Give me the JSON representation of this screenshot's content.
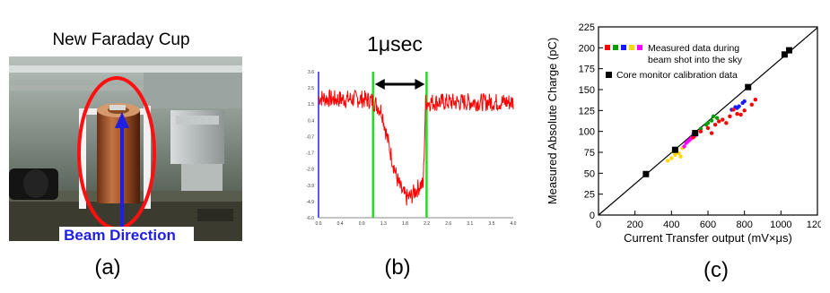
{
  "panel_a": {
    "title": "New Faraday Cup",
    "beam_label": "Beam Direction",
    "caption": "(a)",
    "colors": {
      "ellipse": "#ff1010",
      "arrow": "#1f1fe0",
      "label_bg": "#ffffff"
    }
  },
  "panel_b": {
    "span_label": "1μsec",
    "caption": "(b)"
  },
  "panel_c": {
    "caption": "(c)"
  },
  "chart_data": [
    {
      "type": "line",
      "title": "",
      "xlabel": "",
      "ylabel": "",
      "xlim": [
        0.0,
        4.0
      ],
      "ylim": [
        -6.0,
        3.6
      ],
      "x_ticks": [
        "0.0",
        "0.4",
        "0.9",
        "1.3",
        "1.8",
        "2.2",
        "2.6",
        "3.1",
        "3.5",
        "4.0"
      ],
      "y_ticks": [
        "3.6",
        "2.5",
        "1.5",
        "0.4",
        "-0.7",
        "-1.7",
        "-2.8",
        "-3.9",
        "-4.9",
        "-6.0"
      ],
      "markers": {
        "green_lines_x": [
          1.12,
          2.22
        ]
      },
      "series": [
        {
          "color": "#ff0000",
          "x": [
            0.0,
            0.3,
            0.6,
            0.9,
            1.1,
            1.2,
            1.3,
            1.4,
            1.5,
            1.6,
            1.7,
            1.8,
            1.9,
            2.0,
            2.1,
            2.15,
            2.2,
            2.5,
            3.0,
            3.5,
            4.0
          ],
          "y": [
            1.9,
            1.8,
            1.8,
            1.8,
            1.7,
            1.4,
            1.0,
            -0.6,
            -2.0,
            -3.3,
            -4.2,
            -4.7,
            -4.6,
            -4.2,
            -3.8,
            -3.9,
            1.6,
            1.6,
            1.6,
            1.6,
            1.6
          ]
        }
      ]
    },
    {
      "type": "scatter",
      "title": "",
      "xlabel": "Current Transfer output (mV×μs)",
      "ylabel": "Measured Absolute Charge (pC)",
      "xlim": [
        0,
        1200
      ],
      "ylim": [
        0,
        225
      ],
      "x_ticks": [
        "0",
        "200",
        "400",
        "600",
        "800",
        "1000",
        "1200"
      ],
      "y_ticks": [
        "0",
        "25",
        "50",
        "75",
        "100",
        "125",
        "150",
        "175",
        "200",
        "225"
      ],
      "legend": [
        {
          "label": "Measured data during beam shot into the sky",
          "colors": [
            "#ff0000",
            "#00a000",
            "#1a1aff",
            "#ffd700",
            "#ff00ff"
          ]
        },
        {
          "label": "Core monitor calibration data",
          "colors": [
            "#000000"
          ]
        }
      ],
      "fit_line": {
        "x": [
          0,
          1200
        ],
        "y": [
          0,
          224
        ]
      },
      "series": [
        {
          "name": "Core monitor calibration data",
          "color": "#000000",
          "x": [
            260,
            420,
            530,
            820,
            1020,
            1045
          ],
          "y": [
            49,
            78,
            98,
            153,
            192,
            197
          ]
        },
        {
          "color": "#ffd700",
          "x": [
            400,
            420,
            440,
            460,
            380,
            410,
            450
          ],
          "y": [
            68,
            72,
            74,
            80,
            65,
            76,
            70
          ]
        },
        {
          "color": "#ff00ff",
          "x": [
            470,
            490,
            510,
            530,
            480,
            500,
            520
          ],
          "y": [
            82,
            88,
            92,
            95,
            86,
            90,
            97
          ]
        },
        {
          "color": "#00a000",
          "x": [
            560,
            590,
            620,
            650,
            600,
            630
          ],
          "y": [
            103,
            108,
            113,
            116,
            110,
            118
          ]
        },
        {
          "color": "#1a1aff",
          "x": [
            730,
            750,
            770,
            790,
            800,
            760
          ],
          "y": [
            126,
            129,
            130,
            134,
            136,
            128
          ]
        },
        {
          "color": "#ff0000",
          "x": [
            520,
            560,
            600,
            640,
            680,
            720,
            760,
            800,
            840,
            620,
            700,
            780,
            860,
            660,
            740
          ],
          "y": [
            93,
            100,
            104,
            108,
            114,
            118,
            121,
            125,
            132,
            98,
            110,
            120,
            138,
            112,
            126
          ]
        }
      ]
    }
  ]
}
